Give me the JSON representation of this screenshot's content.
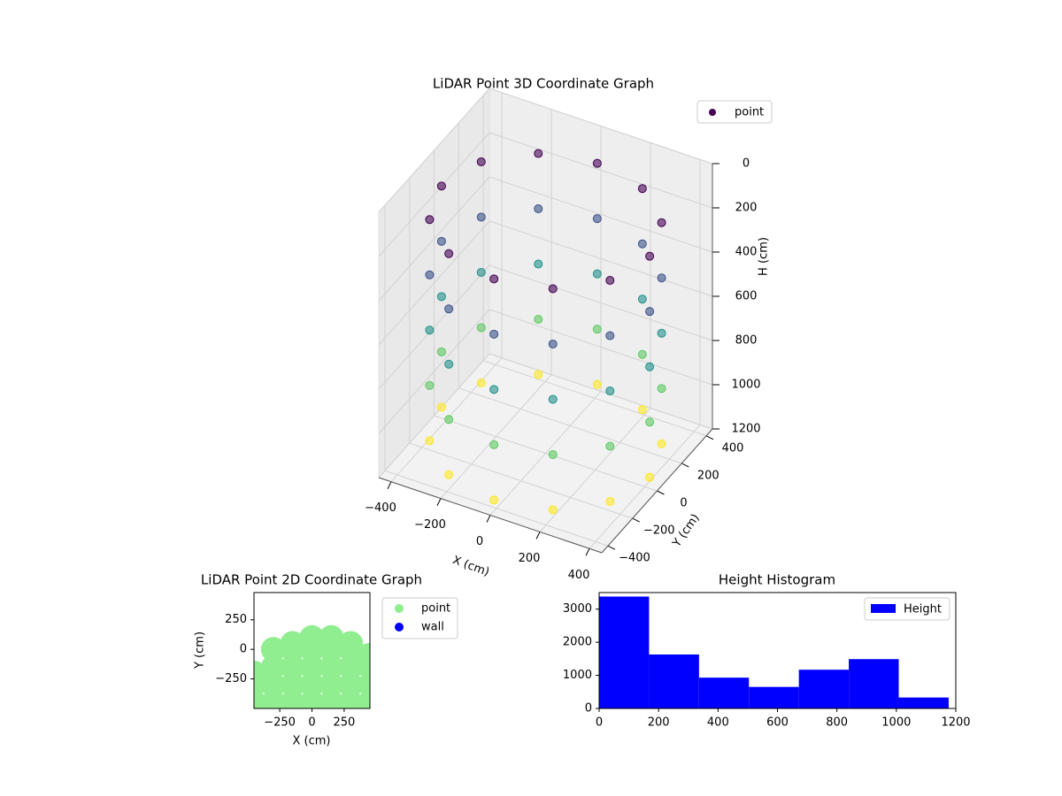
{
  "chart_data": [
    {
      "type": "scatter3d",
      "title": "LiDAR Point 3D Coordinate Graph",
      "xlabel": "X (cm)",
      "ylabel": "Y (cm)",
      "zlabel": "H (cm)",
      "series": [
        {
          "name": "point",
          "colormap": "viridis",
          "x": [
            420,
            420,
            420,
            420,
            420,
            364,
            364,
            364,
            364,
            364,
            210,
            210,
            210,
            210,
            210,
            0,
            0,
            0,
            0,
            0,
            -210,
            -210,
            -210,
            -210,
            -210,
            -364,
            -364,
            -364,
            -364,
            -364,
            -420,
            -420,
            -420,
            -420,
            -420,
            -364,
            -364,
            -364,
            -364,
            -364,
            -210,
            -210,
            -210,
            -210,
            -210,
            0,
            0,
            0,
            0,
            0,
            210,
            210,
            210,
            210,
            210,
            364,
            364,
            364,
            364,
            364
          ],
          "y": [
            0,
            0,
            0,
            0,
            0,
            210,
            210,
            210,
            210,
            210,
            364,
            364,
            364,
            364,
            364,
            420,
            420,
            420,
            420,
            420,
            364,
            364,
            364,
            364,
            364,
            210,
            210,
            210,
            210,
            210,
            0,
            0,
            0,
            0,
            0,
            -210,
            -210,
            -210,
            -210,
            -210,
            -364,
            -364,
            -364,
            -364,
            -364,
            -420,
            -420,
            -420,
            -420,
            -420,
            -364,
            -364,
            -364,
            -364,
            -364,
            -210,
            -210,
            -210,
            -210,
            -210
          ],
          "z": [
            150,
            400,
            650,
            900,
            1150,
            150,
            400,
            650,
            900,
            1150,
            150,
            400,
            650,
            900,
            1150,
            150,
            400,
            650,
            900,
            1150,
            150,
            400,
            650,
            900,
            1150,
            150,
            400,
            650,
            900,
            1150,
            150,
            400,
            650,
            900,
            1150,
            150,
            400,
            650,
            900,
            1150,
            150,
            400,
            650,
            900,
            1150,
            150,
            400,
            650,
            900,
            1150,
            150,
            400,
            650,
            900,
            1150,
            150,
            400,
            650,
            900,
            1150
          ]
        }
      ],
      "xlim": [
        -450,
        450
      ],
      "ylim": [
        -450,
        450
      ],
      "zlim": [
        0,
        1200
      ],
      "zinverted": true,
      "xticks": [
        {
          "value": -400,
          "label": "−400"
        },
        {
          "value": -200,
          "label": "−200"
        },
        0,
        200,
        400
      ],
      "yticks": [
        {
          "value": -400,
          "label": "−400"
        },
        {
          "value": -200,
          "label": "−200"
        },
        0,
        200,
        400
      ],
      "zticks": [
        0,
        200,
        400,
        600,
        800,
        1000,
        1200
      ],
      "grid": true,
      "legend": "upper right"
    },
    {
      "type": "scatter",
      "title": "LiDAR Point 2D Coordinate Graph",
      "xlabel": "X (cm)",
      "ylabel": "Y (cm)",
      "series": [
        {
          "name": "point",
          "color": "#90ee90",
          "x": [
            -450,
            -450,
            -450,
            -300,
            -300,
            -300,
            -300,
            -150,
            -150,
            -150,
            -150,
            -150,
            0,
            0,
            0,
            0,
            0,
            150,
            150,
            150,
            150,
            150,
            300,
            300,
            300,
            300,
            300,
            450,
            450,
            450,
            450
          ],
          "y": [
            -450,
            -300,
            -200,
            -450,
            -300,
            -150,
            0,
            -450,
            -300,
            -150,
            0,
            50,
            -450,
            -300,
            -150,
            0,
            100,
            -450,
            -300,
            -150,
            0,
            100,
            -450,
            -300,
            -150,
            0,
            50,
            -450,
            -300,
            -150,
            -50
          ]
        },
        {
          "name": "wall",
          "color": "#0000ff",
          "x": [],
          "y": []
        }
      ],
      "xlim": [
        -450,
        450
      ],
      "ylim": [
        -500,
        480
      ],
      "xticks": [
        {
          "value": -250,
          "label": "−250"
        },
        0,
        250
      ],
      "yticks": [
        {
          "value": -250,
          "label": "−250"
        },
        0,
        250
      ],
      "legend": "outside right"
    },
    {
      "type": "histogram",
      "title": "Height Histogram",
      "bins": [
        0,
        168,
        336,
        504,
        672,
        840,
        1008,
        1176
      ],
      "series": [
        {
          "name": "Height",
          "color": "#0000ff",
          "values": [
            3380,
            1630,
            930,
            650,
            1170,
            1490,
            330
          ]
        }
      ],
      "xlim": [
        0,
        1200
      ],
      "ylim": [
        0,
        3500
      ],
      "xticks": [
        0,
        200,
        400,
        600,
        800,
        1000,
        1200
      ],
      "yticks": [
        0,
        1000,
        2000,
        3000
      ],
      "legend": "upper right"
    }
  ]
}
